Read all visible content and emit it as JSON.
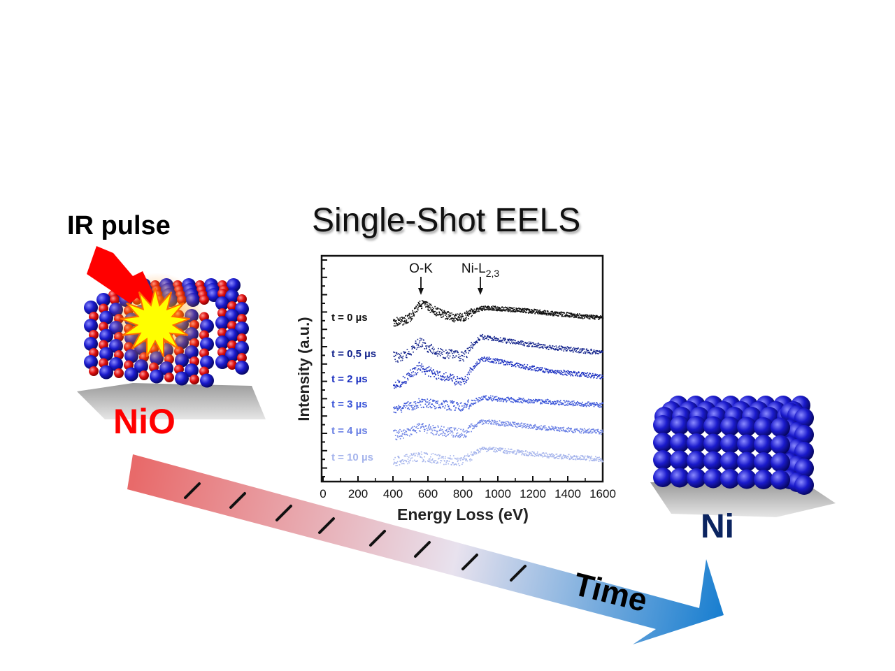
{
  "figure": {
    "title": "Single-Shot EELS",
    "pulse_label": "IR pulse",
    "start_material": "NiO",
    "end_material": "Ni",
    "arrow_label": "Time",
    "colors": {
      "oxygen_atom": "#e01010",
      "nickel_atom": "#1a1acc",
      "pulse": "#ff0000",
      "burst": "#ffff00",
      "arrow_start": "#e86a6a",
      "arrow_end": "#1a7fd0",
      "nio_label": "#ff0000",
      "ni_label": "#0b2460"
    },
    "icons": [
      "lightning-bolt-icon",
      "explosion-burst-icon",
      "nio-crystal-icon",
      "ni-crystal-icon",
      "time-arrow-icon"
    ]
  },
  "chart_data": {
    "type": "scatter",
    "title": "Single-Shot EELS",
    "xlabel": "Energy Loss (eV)",
    "ylabel": "Intensity (a.u.)",
    "xlim": [
      0,
      1600
    ],
    "xticks": [
      0,
      200,
      400,
      600,
      800,
      1000,
      1200,
      1400,
      1600
    ],
    "grid": false,
    "annotations": [
      {
        "text": "O-K",
        "x": 560
      },
      {
        "text": "Ni-L",
        "sub": "2,3",
        "x": 900
      }
    ],
    "series": [
      {
        "name": "t = 0 µs",
        "color": "#111111",
        "x": [
          400,
          450,
          500,
          550,
          600,
          650,
          700,
          750,
          800,
          850,
          900,
          950,
          1000,
          1100,
          1200,
          1300,
          1400,
          1500,
          1600
        ],
        "y": [
          0.0,
          0.02,
          0.15,
          0.55,
          0.45,
          0.3,
          0.2,
          0.12,
          0.14,
          0.3,
          0.4,
          0.42,
          0.4,
          0.36,
          0.32,
          0.26,
          0.22,
          0.16,
          0.12
        ]
      },
      {
        "name": "t = 0,5 µs",
        "color": "#10208a",
        "x": [
          400,
          450,
          500,
          550,
          600,
          650,
          700,
          750,
          800,
          850,
          900,
          950,
          1000,
          1100,
          1200,
          1300,
          1400,
          1500,
          1600
        ],
        "y": [
          0.05,
          0.02,
          0.25,
          0.55,
          0.35,
          0.2,
          0.15,
          0.1,
          0.05,
          0.4,
          0.7,
          0.68,
          0.62,
          0.52,
          0.44,
          0.36,
          0.3,
          0.24,
          0.18
        ]
      },
      {
        "name": "t = 2 µs",
        "color": "#1a2fc0",
        "x": [
          400,
          450,
          500,
          550,
          600,
          650,
          700,
          750,
          800,
          850,
          900,
          950,
          1000,
          1100,
          1200,
          1300,
          1400,
          1500,
          1600
        ],
        "y": [
          0.0,
          0.05,
          0.3,
          0.55,
          0.4,
          0.25,
          0.22,
          0.12,
          0.04,
          0.45,
          0.8,
          0.78,
          0.72,
          0.6,
          0.5,
          0.4,
          0.34,
          0.28,
          0.22
        ]
      },
      {
        "name": "t = 3 µs",
        "color": "#3a55d8",
        "x": [
          400,
          450,
          500,
          550,
          600,
          650,
          700,
          750,
          800,
          850,
          900,
          950,
          1000,
          1100,
          1200,
          1300,
          1400,
          1500,
          1600
        ],
        "y": [
          0.0,
          0.05,
          0.1,
          0.2,
          0.18,
          0.14,
          0.12,
          0.1,
          0.06,
          0.2,
          0.34,
          0.34,
          0.32,
          0.28,
          0.25,
          0.22,
          0.18,
          0.15,
          0.12
        ]
      },
      {
        "name": "t = 4 µs",
        "color": "#6a80e4",
        "x": [
          400,
          450,
          500,
          550,
          600,
          650,
          700,
          750,
          800,
          850,
          900,
          950,
          1000,
          1100,
          1200,
          1300,
          1400,
          1500,
          1600
        ],
        "y": [
          0.0,
          0.05,
          0.15,
          0.28,
          0.2,
          0.16,
          0.12,
          0.08,
          0.04,
          0.24,
          0.42,
          0.42,
          0.4,
          0.34,
          0.28,
          0.22,
          0.18,
          0.14,
          0.1
        ]
      },
      {
        "name": "t = 10 µs",
        "color": "#a5b4ec",
        "x": [
          400,
          450,
          500,
          550,
          600,
          650,
          700,
          750,
          800,
          850,
          900,
          950,
          1000,
          1100,
          1200,
          1300,
          1400,
          1500,
          1600
        ],
        "y": [
          0.0,
          0.05,
          0.12,
          0.18,
          0.14,
          0.1,
          0.06,
          0.04,
          0.02,
          0.2,
          0.4,
          0.4,
          0.38,
          0.32,
          0.26,
          0.2,
          0.16,
          0.12,
          0.08
        ]
      }
    ]
  }
}
